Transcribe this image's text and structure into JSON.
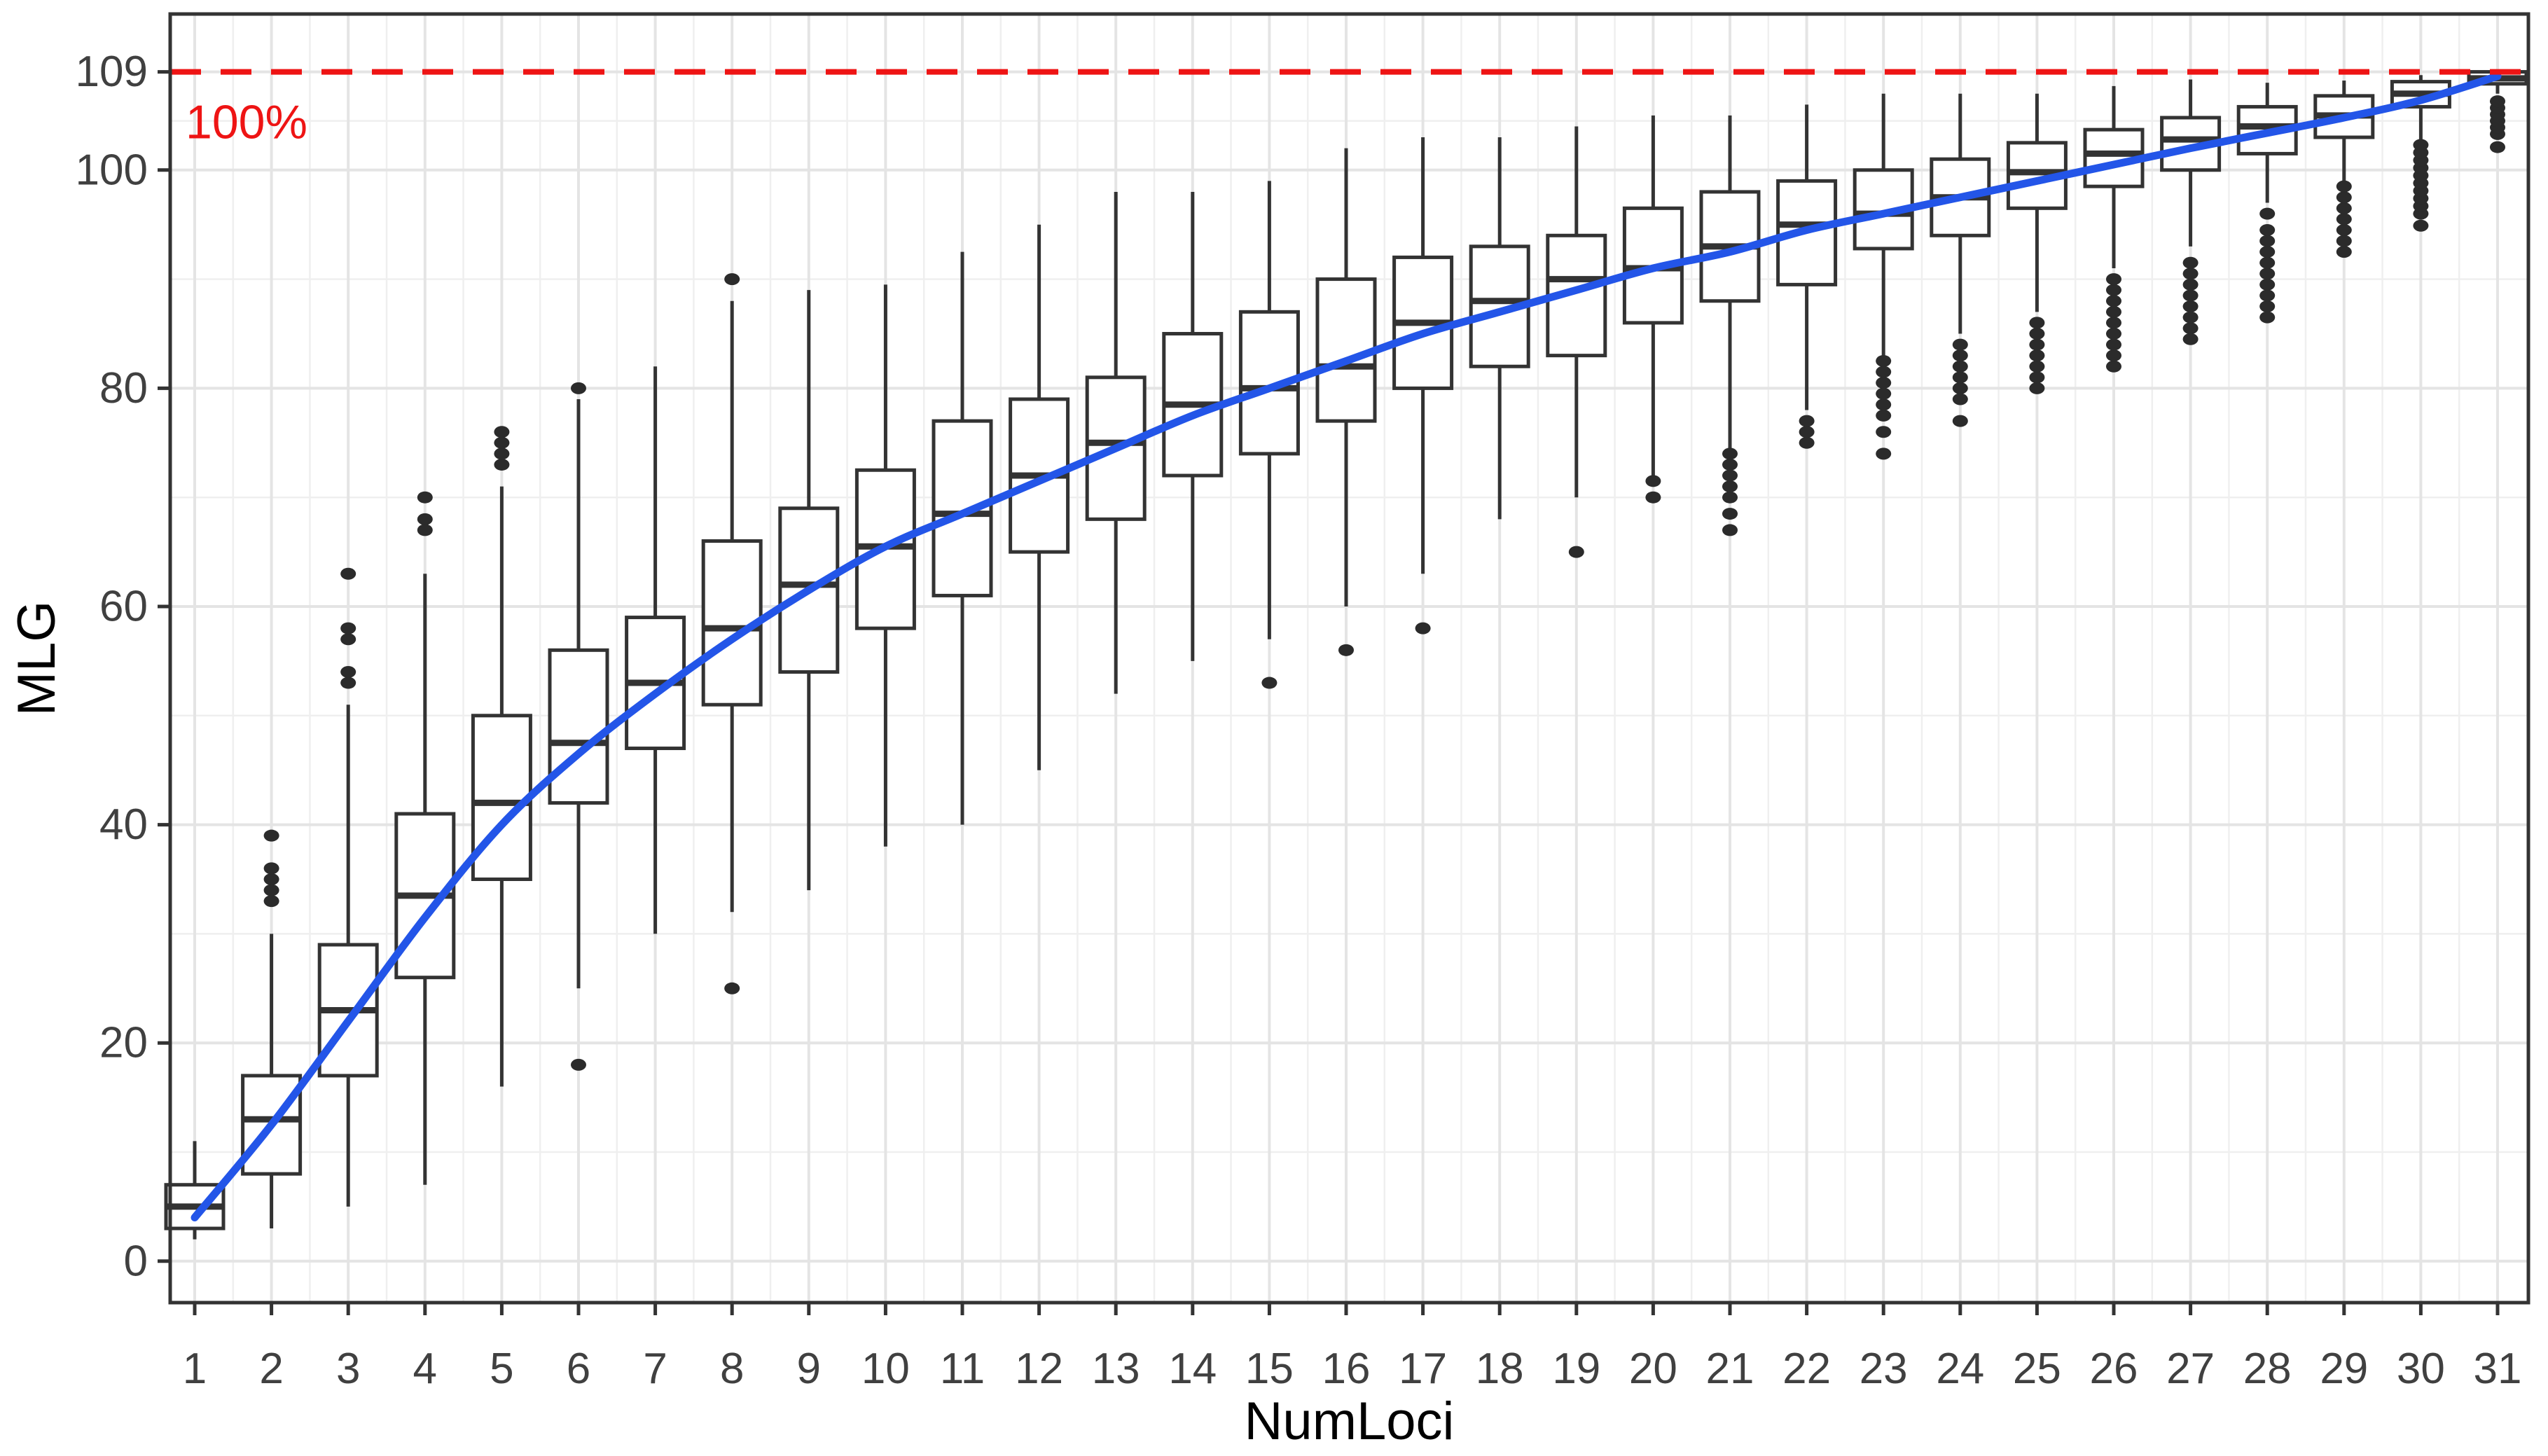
{
  "figure": {
    "xlabel": "NumLoci",
    "ylabel": "MLG",
    "annotation": {
      "text": "100%",
      "color": "#ee1414"
    }
  },
  "colors": {
    "smooth_line": "#2355e8",
    "reference_line": "#ee1414",
    "box_stroke": "#333333",
    "outlier_fill": "#2b2b2b",
    "grid_major": "#e4e4e4",
    "grid_minor": "#efefef",
    "panel_border": "#333333",
    "tick_text": "#404040",
    "background": "#ffffff"
  },
  "chart_data": {
    "type": "boxplot",
    "title": "",
    "xlabel": "NumLoci",
    "ylabel": "MLG",
    "x_tick_labels": [
      "1",
      "2",
      "3",
      "4",
      "5",
      "6",
      "7",
      "8",
      "9",
      "10",
      "11",
      "12",
      "13",
      "14",
      "15",
      "16",
      "17",
      "18",
      "19",
      "20",
      "21",
      "22",
      "23",
      "24",
      "25",
      "26",
      "27",
      "28",
      "29",
      "30",
      "31"
    ],
    "y_ticks": [
      0,
      20,
      40,
      60,
      80,
      100,
      109
    ],
    "y_tick_labels": [
      "0",
      "20",
      "40",
      "60",
      "80",
      "100",
      "109"
    ],
    "y_minor_ticks": [
      10,
      30,
      50,
      70,
      90,
      104.5
    ],
    "ylim": [
      -3.8,
      114.3
    ],
    "grid": "major+minor",
    "legend": "none",
    "reference_line": {
      "y": 109,
      "label": "100%",
      "style": "dashed",
      "color": "#ee1414"
    },
    "boxes": [
      {
        "x": 1,
        "whisker_low": 2,
        "q1": 3,
        "median": 5,
        "q3": 7,
        "whisker_high": 11,
        "outliers": []
      },
      {
        "x": 2,
        "whisker_low": 3,
        "q1": 8,
        "median": 13,
        "q3": 17,
        "whisker_high": 30,
        "outliers": [
          33,
          34,
          35,
          36,
          39
        ]
      },
      {
        "x": 3,
        "whisker_low": 5,
        "q1": 17,
        "median": 23,
        "q3": 29,
        "whisker_high": 51,
        "outliers": [
          53,
          54,
          57,
          58,
          63
        ]
      },
      {
        "x": 4,
        "whisker_low": 7,
        "q1": 26,
        "median": 33.5,
        "q3": 41,
        "whisker_high": 63,
        "outliers": [
          67,
          68,
          70
        ]
      },
      {
        "x": 5,
        "whisker_low": 16,
        "q1": 35,
        "median": 42,
        "q3": 50,
        "whisker_high": 71,
        "outliers": [
          73,
          74,
          75,
          76
        ]
      },
      {
        "x": 6,
        "whisker_low": 25,
        "q1": 42,
        "median": 47.5,
        "q3": 56,
        "whisker_high": 79,
        "outliers": [
          18,
          80
        ]
      },
      {
        "x": 7,
        "whisker_low": 30,
        "q1": 47,
        "median": 53,
        "q3": 59,
        "whisker_high": 82,
        "outliers": []
      },
      {
        "x": 8,
        "whisker_low": 32,
        "q1": 51,
        "median": 58,
        "q3": 66,
        "whisker_high": 88,
        "outliers": [
          25,
          90
        ]
      },
      {
        "x": 9,
        "whisker_low": 34,
        "q1": 54,
        "median": 62,
        "q3": 69,
        "whisker_high": 89,
        "outliers": []
      },
      {
        "x": 10,
        "whisker_low": 38,
        "q1": 58,
        "median": 65.5,
        "q3": 72.5,
        "whisker_high": 89.5,
        "outliers": []
      },
      {
        "x": 11,
        "whisker_low": 40,
        "q1": 61,
        "median": 68.5,
        "q3": 77,
        "whisker_high": 92.5,
        "outliers": []
      },
      {
        "x": 12,
        "whisker_low": 45,
        "q1": 65,
        "median": 72,
        "q3": 79,
        "whisker_high": 95,
        "outliers": []
      },
      {
        "x": 13,
        "whisker_low": 52,
        "q1": 68,
        "median": 75,
        "q3": 81,
        "whisker_high": 98,
        "outliers": []
      },
      {
        "x": 14,
        "whisker_low": 55,
        "q1": 72,
        "median": 78.5,
        "q3": 85,
        "whisker_high": 98,
        "outliers": []
      },
      {
        "x": 15,
        "whisker_low": 57,
        "q1": 74,
        "median": 80,
        "q3": 87,
        "whisker_high": 99,
        "outliers": [
          53
        ]
      },
      {
        "x": 16,
        "whisker_low": 60,
        "q1": 77,
        "median": 82,
        "q3": 90,
        "whisker_high": 102,
        "outliers": [
          56
        ]
      },
      {
        "x": 17,
        "whisker_low": 63,
        "q1": 80,
        "median": 86,
        "q3": 92,
        "whisker_high": 103,
        "outliers": [
          58
        ]
      },
      {
        "x": 18,
        "whisker_low": 68,
        "q1": 82,
        "median": 88,
        "q3": 93,
        "whisker_high": 103,
        "outliers": []
      },
      {
        "x": 19,
        "whisker_low": 70,
        "q1": 83,
        "median": 90,
        "q3": 94,
        "whisker_high": 104,
        "outliers": [
          65
        ]
      },
      {
        "x": 20,
        "whisker_low": 72,
        "q1": 86,
        "median": 91,
        "q3": 96.5,
        "whisker_high": 105,
        "outliers": [
          70,
          71.5
        ]
      },
      {
        "x": 21,
        "whisker_low": 74.5,
        "q1": 88,
        "median": 93,
        "q3": 98,
        "whisker_high": 105,
        "outliers": [
          67,
          68.5,
          70,
          71,
          72,
          73,
          74
        ]
      },
      {
        "x": 22,
        "whisker_low": 78,
        "q1": 89.5,
        "median": 95,
        "q3": 99,
        "whisker_high": 106,
        "outliers": [
          75,
          76,
          77
        ]
      },
      {
        "x": 23,
        "whisker_low": 83,
        "q1": 92.8,
        "median": 96,
        "q3": 100,
        "whisker_high": 107,
        "outliers": [
          74,
          76,
          77.5,
          78.5,
          79.5,
          80.5,
          81.5,
          82.5
        ]
      },
      {
        "x": 24,
        "whisker_low": 85,
        "q1": 94,
        "median": 97.5,
        "q3": 101,
        "whisker_high": 107,
        "outliers": [
          77,
          79,
          80,
          81,
          82,
          83,
          84
        ]
      },
      {
        "x": 25,
        "whisker_low": 87,
        "q1": 96.5,
        "median": 99.8,
        "q3": 102.5,
        "whisker_high": 107,
        "outliers": [
          80,
          81,
          82,
          83,
          84,
          85,
          86
        ]
      },
      {
        "x": 26,
        "whisker_low": 91,
        "q1": 98.5,
        "median": 101.5,
        "q3": 103.7,
        "whisker_high": 107.7,
        "outliers": [
          82,
          83,
          84,
          85,
          86,
          87,
          88,
          89,
          90
        ]
      },
      {
        "x": 27,
        "whisker_low": 93,
        "q1": 100,
        "median": 102.8,
        "q3": 104.8,
        "whisker_high": 108.3,
        "outliers": [
          84.5,
          85.5,
          86.5,
          87.5,
          88.5,
          89.5,
          90.5,
          91.5
        ]
      },
      {
        "x": 28,
        "whisker_low": 97,
        "q1": 101.5,
        "median": 104,
        "q3": 105.8,
        "whisker_high": 108,
        "outliers": [
          86.5,
          87.5,
          88.5,
          89.5,
          90.5,
          91.5,
          92.5,
          93.5,
          94.5,
          96
        ]
      },
      {
        "x": 29,
        "whisker_low": 99,
        "q1": 103,
        "median": 105,
        "q3": 106.8,
        "whisker_high": 108.2,
        "outliers": [
          92.5,
          93.5,
          94.5,
          95.5,
          96.5,
          97.5,
          98.5
        ]
      },
      {
        "x": 30,
        "whisker_low": 102.7,
        "q1": 105.8,
        "median": 107,
        "q3": 108.1,
        "whisker_high": 108.7,
        "outliers": [
          94.9,
          96,
          96.7,
          97.4,
          98.1,
          98.8,
          99.5,
          100.2,
          100.9,
          101.6,
          102.3
        ]
      },
      {
        "x": 31,
        "whisker_low": 107,
        "q1": 107.9,
        "median": 108.4,
        "q3": 109,
        "whisker_high": 109,
        "outliers": [
          102.1,
          103.3,
          103.9,
          104.5,
          105.1,
          105.7,
          106.3
        ]
      }
    ],
    "smooth_line": {
      "name": "loess smooth",
      "color": "#2355e8",
      "x": [
        1,
        2,
        3,
        4,
        5,
        6,
        7,
        8,
        9,
        10,
        11,
        12,
        13,
        14,
        15,
        16,
        17,
        18,
        19,
        20,
        21,
        22,
        23,
        24,
        25,
        26,
        27,
        28,
        29,
        30,
        31
      ],
      "values": [
        4,
        12.5,
        22,
        31.5,
        40,
        46.5,
        52,
        57,
        61.5,
        65.5,
        68.5,
        71.5,
        74.5,
        77.5,
        80,
        82.5,
        85,
        87,
        89,
        91,
        92.5,
        94.5,
        96,
        97.5,
        99,
        100.5,
        102,
        103.4,
        104.8,
        106.4,
        108.6
      ]
    }
  }
}
